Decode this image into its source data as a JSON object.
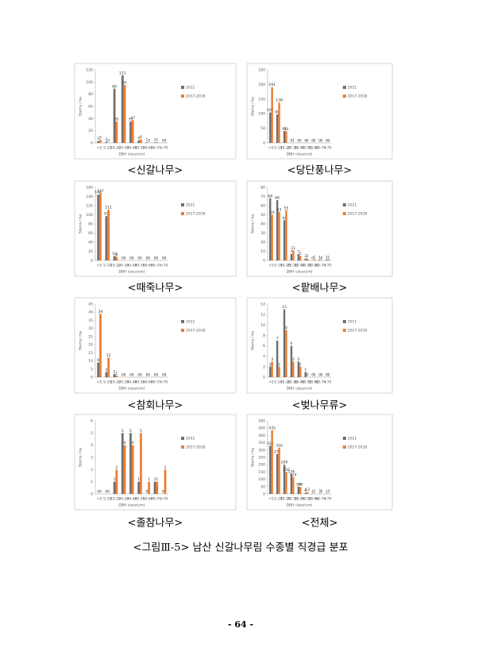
{
  "chart_data": [
    {
      "type": "bar",
      "caption": "<신갈나무>",
      "x_label": "DBH class(cm)",
      "y_label": "Stems / ha",
      "categories": [
        "<5",
        "5-10",
        "10-20",
        "20-30",
        "30-40",
        "40-50",
        "50-60",
        "60-70",
        ">70"
      ],
      "ylim": [
        0,
        120
      ],
      "yticks": [
        0,
        20,
        40,
        60,
        80,
        100,
        120
      ],
      "series": [
        {
          "name": "2011",
          "color": "#6f6f6f",
          "values": [
            3,
            2,
            89,
            111,
            35,
            4,
            1,
            1,
            0
          ]
        },
        {
          "name": "2017-2018",
          "color": "#ed7d31",
          "values": [
            5,
            0,
            35,
            95,
            37,
            6,
            0,
            1,
            0
          ]
        }
      ]
    },
    {
      "type": "bar",
      "caption": "<당단풍나무>",
      "x_label": "DBH class(cm)",
      "y_label": "Stems / ha",
      "categories": [
        "<5",
        "5-10",
        "10-20",
        "20-30",
        "30-40",
        "40-50",
        "50-60",
        "60-70",
        ">70"
      ],
      "ylim": [
        0,
        250
      ],
      "yticks": [
        0,
        50,
        100,
        150,
        200,
        250
      ],
      "series": [
        {
          "name": "2011",
          "color": "#6f6f6f",
          "values": [
            104,
            98,
            41,
            0,
            0,
            0,
            0,
            0,
            0
          ]
        },
        {
          "name": "2017-2018",
          "color": "#ed7d31",
          "values": [
            191,
            138,
            40,
            1,
            0,
            0,
            0,
            0,
            0
          ]
        }
      ]
    },
    {
      "type": "bar",
      "caption": "<때죽나무>",
      "x_label": "DBH class(cm)",
      "y_label": "Stems / ha",
      "categories": [
        "<5",
        "5-10",
        "10-20",
        "20-30",
        "30-40",
        "40-50",
        "50-60",
        "60-70",
        ">70"
      ],
      "ylim": [
        0,
        160
      ],
      "yticks": [
        0,
        20,
        40,
        60,
        80,
        100,
        120,
        140,
        160
      ],
      "series": [
        {
          "name": "2011",
          "color": "#6f6f6f",
          "values": [
            144,
            97,
            10,
            0,
            0,
            0,
            0,
            0,
            0
          ]
        },
        {
          "name": "2017-2018",
          "color": "#ed7d31",
          "values": [
            147,
            111,
            8,
            0,
            0,
            0,
            0,
            0,
            0
          ]
        }
      ]
    },
    {
      "type": "bar",
      "caption": "<팥배나무>",
      "x_label": "DBH class(cm)",
      "y_label": "Stems / ha",
      "categories": [
        "<5",
        "5-10",
        "10-20",
        "20-30",
        "30-40",
        "40-50",
        "50-60",
        "60-70",
        ">70"
      ],
      "ylim": [
        0,
        80
      ],
      "yticks": [
        0,
        10,
        20,
        30,
        40,
        50,
        60,
        70,
        80
      ],
      "series": [
        {
          "name": "2011",
          "color": "#6f6f6f",
          "values": [
            68,
            66,
            44,
            7,
            7,
            2,
            0,
            1,
            1
          ]
        },
        {
          "name": "2017-2018",
          "color": "#ed7d31",
          "values": [
            50,
            53,
            55,
            11,
            5,
            2,
            1,
            0,
            1
          ]
        }
      ]
    },
    {
      "type": "bar",
      "caption": "<참회나무>",
      "x_label": "DBH class(cm)",
      "y_label": "Stems / ha",
      "categories": [
        "<5",
        "5-10",
        "10-20",
        "20-30",
        "30-40",
        "40-50",
        "50-60",
        "60-70",
        ">70"
      ],
      "ylim": [
        0,
        45
      ],
      "yticks": [
        0,
        5,
        10,
        15,
        20,
        25,
        30,
        35,
        40,
        45
      ],
      "series": [
        {
          "name": "2011",
          "color": "#6f6f6f",
          "values": [
            9,
            3,
            2,
            0,
            0,
            0,
            0,
            0,
            0
          ]
        },
        {
          "name": "2017-2018",
          "color": "#ed7d31",
          "values": [
            39,
            12,
            1,
            0,
            0,
            0,
            0,
            0,
            0
          ]
        }
      ]
    },
    {
      "type": "bar",
      "caption": "<벚나무류>",
      "x_label": "DBH class(cm)",
      "y_label": "Stems / ha",
      "categories": [
        "<5",
        "5-10",
        "10-20",
        "20-30",
        "30-40",
        "40-50",
        "50-60",
        "60-70",
        ">70"
      ],
      "ylim": [
        0,
        14
      ],
      "yticks": [
        0,
        2,
        4,
        6,
        8,
        10,
        12,
        14
      ],
      "series": [
        {
          "name": "2011",
          "color": "#6f6f6f",
          "values": [
            2,
            7,
            13,
            6,
            3,
            1,
            0,
            0,
            0
          ]
        },
        {
          "name": "2017-2018",
          "color": "#ed7d31",
          "values": [
            3,
            2,
            9,
            3,
            2,
            0,
            0,
            0,
            0
          ]
        }
      ]
    },
    {
      "type": "bar",
      "caption": "<졸참나무>",
      "x_label": "DBH class(cm)",
      "y_label": "Stems / ha",
      "categories": [
        "<5",
        "5-10",
        "10-20",
        "20-30",
        "30-40",
        "40-50",
        "50-60",
        "60-70",
        ">70"
      ],
      "ylim": [
        0,
        6
      ],
      "yticks": [
        0,
        1,
        2,
        3,
        4,
        5,
        6
      ],
      "series": [
        {
          "name": "2011",
          "color": "#6f6f6f",
          "values": [
            0,
            0,
            1,
            5,
            5,
            1,
            0,
            1,
            0
          ]
        },
        {
          "name": "2017-2018",
          "color": "#ed7d31",
          "values": [
            0,
            0,
            2,
            4,
            4,
            5,
            1,
            1,
            2
          ]
        }
      ]
    },
    {
      "type": "bar",
      "caption": "<전체>",
      "x_label": "DBH class(cm)",
      "y_label": "Stems / ha",
      "categories": [
        "<5",
        "5-10",
        "10-20",
        "20-30",
        "30-40",
        "40-50",
        "50-60",
        "60-70",
        ">70"
      ],
      "ylim": [
        0,
        500
      ],
      "yticks": [
        0,
        50,
        100,
        150,
        200,
        250,
        300,
        350,
        400,
        450,
        500
      ],
      "series": [
        {
          "name": "2011",
          "color": "#6f6f6f",
          "values": [
            330,
            273,
            200,
            136,
            50,
            8,
            1,
            3,
            1
          ]
        },
        {
          "name": "2017-2018",
          "color": "#ed7d31",
          "values": [
            435,
            316,
            150,
            114,
            48,
            13,
            2,
            2,
            3
          ]
        }
      ]
    }
  ],
  "figure_caption": "<그림Ⅲ-5> 남산 신갈나무림 수종별 직경급 분포",
  "page_number": "- 64 -"
}
